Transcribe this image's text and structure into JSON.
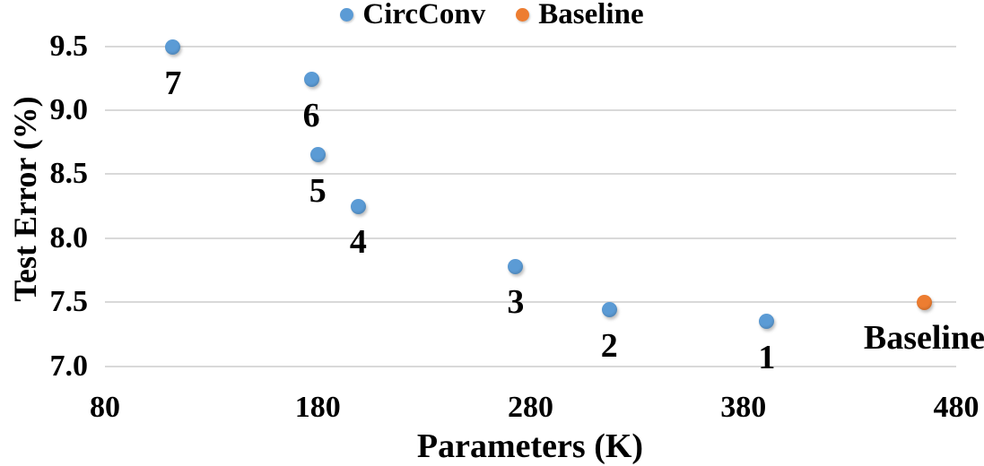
{
  "chart_data": {
    "type": "scatter",
    "title": "",
    "xlabel": "Parameters (K)",
    "ylabel": "Test Error (%)",
    "grid": "horizontal-only",
    "grid_color": "#d9d9d9",
    "background_color": "#ffffff",
    "text_color": "#000000",
    "x_axis": {
      "min": 80,
      "max": 480,
      "tick_values": [
        80,
        180,
        280,
        380,
        480
      ],
      "tick_labels": [
        "80",
        "180",
        "280",
        "380",
        "480"
      ]
    },
    "y_axis": {
      "min": 7.0,
      "max": 9.5,
      "tick_values": [
        7.0,
        7.5,
        8.0,
        8.5,
        9.0,
        9.5
      ],
      "tick_labels": [
        "7.0",
        "7.5",
        "8.0",
        "8.5",
        "9.0",
        "9.5"
      ]
    },
    "legend": {
      "position": "top-center",
      "entries": [
        "CircConv",
        "Baseline"
      ]
    },
    "series": [
      {
        "name": "CircConv",
        "color": "#5b9bd5",
        "points": [
          {
            "label": "7",
            "x": 112,
            "y": 9.49
          },
          {
            "label": "6",
            "x": 177,
            "y": 9.24
          },
          {
            "label": "5",
            "x": 180,
            "y": 8.65
          },
          {
            "label": "4",
            "x": 199,
            "y": 8.25
          },
          {
            "label": "3",
            "x": 273,
            "y": 7.78
          },
          {
            "label": "2",
            "x": 317,
            "y": 7.44
          },
          {
            "label": "1",
            "x": 391,
            "y": 7.35
          }
        ]
      },
      {
        "name": "Baseline",
        "color": "#ed7d31",
        "points": [
          {
            "label": "Baseline",
            "x": 465,
            "y": 7.5
          }
        ]
      }
    ]
  }
}
